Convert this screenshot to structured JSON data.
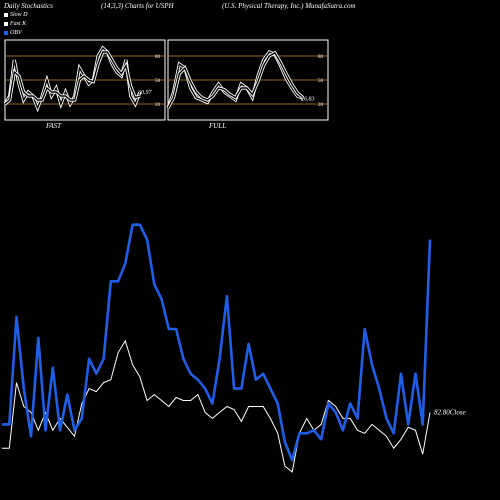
{
  "header": {
    "left": "Daily Stochastics",
    "middle": "(14,3,3) Charts for USPH",
    "right": "(U.S. Physical Therapy, Inc.) MunafaSutra.com"
  },
  "legend": [
    {
      "label": "Slow D",
      "color": "#ffffff"
    },
    {
      "label": "Fast K",
      "color": "#ffffff"
    },
    {
      "label": "OBV",
      "color": "#1f5fe8"
    }
  ],
  "colors": {
    "obv": "#1f5fe8",
    "price": "#ffffff",
    "band": "#c8862a",
    "background": "#000000"
  },
  "chart_data": [
    {
      "type": "line",
      "title": "FAST",
      "ylim": [
        0,
        100
      ],
      "yticks": [
        80,
        50,
        20
      ],
      "bands": [
        80,
        50,
        20
      ],
      "last_value_label": "30.97",
      "series": [
        {
          "name": "Fast K",
          "values": [
            20,
            30,
            75,
            45,
            25,
            35,
            30,
            15,
            30,
            50,
            30,
            40,
            20,
            35,
            20,
            30,
            65,
            55,
            45,
            50,
            80,
            90,
            85,
            70,
            60,
            55,
            75,
            30,
            20,
            35
          ]
        },
        {
          "name": "Slow D",
          "values": [
            20,
            25,
            60,
            55,
            35,
            30,
            30,
            25,
            25,
            40,
            35,
            35,
            30,
            30,
            25,
            25,
            50,
            55,
            50,
            48,
            70,
            85,
            85,
            75,
            65,
            58,
            68,
            42,
            28,
            30
          ]
        }
      ]
    },
    {
      "type": "line",
      "title": "FULL",
      "ylim": [
        0,
        100
      ],
      "yticks": [
        80,
        50,
        20
      ],
      "bands": [
        80,
        50,
        20
      ],
      "last_value_label": "26.83",
      "series": [
        {
          "name": "Full K",
          "values": [
            15,
            35,
            70,
            65,
            40,
            28,
            25,
            22,
            35,
            45,
            35,
            30,
            25,
            45,
            40,
            28,
            55,
            75,
            85,
            82,
            68,
            52,
            40,
            30,
            27
          ]
        },
        {
          "name": "Full D",
          "values": [
            15,
            28,
            58,
            65,
            48,
            35,
            28,
            25,
            30,
            40,
            38,
            32,
            28,
            40,
            40,
            32,
            48,
            68,
            80,
            84,
            72,
            58,
            45,
            34,
            28
          ]
        }
      ]
    },
    {
      "type": "line",
      "ylim": [
        0,
        100
      ],
      "close_label": "82.80Close",
      "series": [
        {
          "name": "OBV",
          "values": [
            18,
            18,
            54,
            30,
            14,
            47,
            16,
            37,
            16,
            28,
            16,
            20,
            40,
            35,
            40,
            66,
            66,
            72,
            85,
            85,
            80,
            65,
            60,
            50,
            50,
            40,
            35,
            33,
            30,
            25,
            40,
            61,
            30,
            30,
            45,
            33,
            35,
            30,
            25,
            12,
            6,
            15,
            15,
            16,
            13,
            25,
            22,
            16,
            25,
            20,
            50,
            38,
            30,
            20,
            15,
            35,
            18,
            35,
            18,
            80
          ]
        },
        {
          "name": "Close",
          "values": [
            10,
            10,
            32,
            24,
            22,
            16,
            22,
            16,
            20,
            17,
            14,
            25,
            30,
            29,
            32,
            33,
            42,
            46,
            38,
            34,
            26,
            28,
            26,
            24,
            27,
            26,
            26,
            28,
            22,
            20,
            22,
            24,
            23,
            19,
            24,
            24,
            24,
            20,
            15,
            4,
            2,
            15,
            20,
            16,
            18,
            26,
            24,
            20,
            20,
            16,
            15,
            18,
            16,
            14,
            10,
            13,
            17,
            16,
            8,
            22
          ]
        }
      ]
    }
  ]
}
